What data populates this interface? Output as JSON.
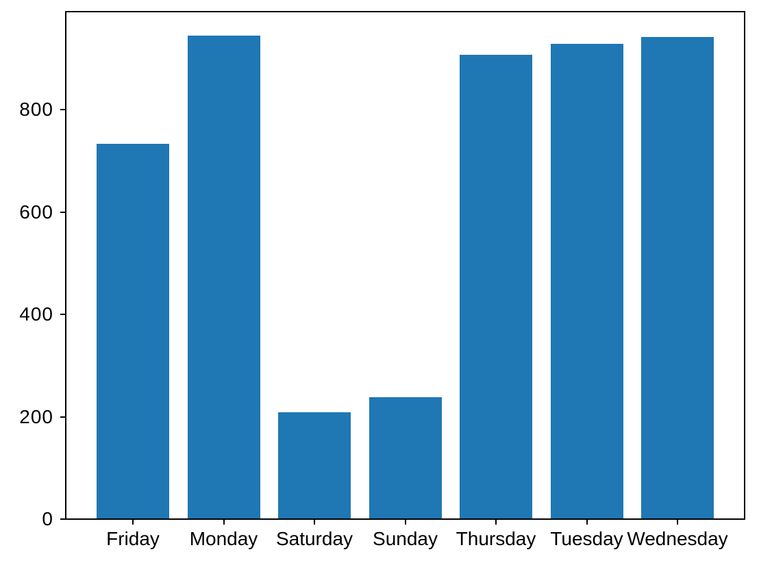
{
  "chart_data": {
    "type": "bar",
    "categories": [
      "Friday",
      "Monday",
      "Saturday",
      "Sunday",
      "Thursday",
      "Tuesday",
      "Wednesday"
    ],
    "values": [
      734,
      945,
      209,
      238,
      908,
      929,
      942
    ],
    "title": "",
    "xlabel": "",
    "ylabel": "",
    "ylim": [
      0,
      992
    ],
    "yticks": [
      0,
      200,
      400,
      600,
      800
    ],
    "bar_color": "#1f77b4",
    "axis_color": "#000000",
    "tick_label_color": "#000000",
    "background_color": "#ffffff",
    "bar_width_fraction": 0.8,
    "x_margin": 0.74,
    "grid": false,
    "legend": null
  }
}
